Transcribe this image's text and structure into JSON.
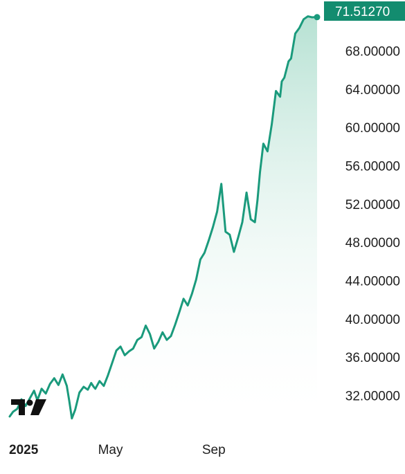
{
  "chart_data": {
    "type": "area",
    "x_labels": [
      "2025",
      "May",
      "Sep"
    ],
    "ylim": [
      29,
      72.8
    ],
    "y_ticks": [
      "32.00000",
      "36.00000",
      "40.00000",
      "44.00000",
      "48.00000",
      "52.00000",
      "56.00000",
      "60.00000",
      "64.00000",
      "68.00000"
    ],
    "y_tick_values": [
      32,
      36,
      40,
      44,
      48,
      52,
      56,
      60,
      64,
      68
    ],
    "last_value": 71.5127,
    "last_value_label": "71.51270",
    "x": [
      "2025-01-01",
      "2025-01-05",
      "2025-01-10",
      "2025-01-15",
      "2025-01-20",
      "2025-01-25",
      "2025-01-30",
      "2025-02-03",
      "2025-02-08",
      "2025-02-13",
      "2025-02-18",
      "2025-02-23",
      "2025-02-28",
      "2025-03-05",
      "2025-03-10",
      "2025-03-13",
      "2025-03-16",
      "2025-03-20",
      "2025-03-25",
      "2025-03-30",
      "2025-04-04",
      "2025-04-08",
      "2025-04-11",
      "2025-04-13",
      "2025-04-18",
      "2025-04-23",
      "2025-04-28",
      "2025-05-03",
      "2025-05-08",
      "2025-05-13",
      "2025-05-18",
      "2025-05-23",
      "2025-05-28",
      "2025-06-02",
      "2025-06-07",
      "2025-06-12",
      "2025-06-17",
      "2025-06-22",
      "2025-06-27",
      "2025-07-02",
      "2025-07-07",
      "2025-07-12",
      "2025-07-17",
      "2025-07-22",
      "2025-07-27",
      "2025-08-01",
      "2025-08-06",
      "2025-08-11",
      "2025-08-16",
      "2025-08-21",
      "2025-08-26",
      "2025-08-31",
      "2025-09-05",
      "2025-09-10",
      "2025-09-15",
      "2025-09-20",
      "2025-09-25",
      "2025-09-30",
      "2025-10-05",
      "2025-10-10",
      "2025-10-15",
      "2025-10-20",
      "2025-10-23",
      "2025-10-26",
      "2025-10-30",
      "2025-11-04",
      "2025-11-09",
      "2025-11-14",
      "2025-11-19",
      "2025-11-21",
      "2025-11-24",
      "2025-11-29",
      "2025-12-02",
      "2025-12-07",
      "2025-12-12",
      "2025-12-17",
      "2025-12-22",
      "2025-12-27",
      "2025-12-31",
      "2026-01-02"
    ],
    "values": [
      29.8,
      30.3,
      30.6,
      31.6,
      30.9,
      31.7,
      32.5,
      31.5,
      32.7,
      32.2,
      33.2,
      33.8,
      33.1,
      34.2,
      33.0,
      31.4,
      29.6,
      30.5,
      32.3,
      32.9,
      32.6,
      33.3,
      32.9,
      32.7,
      33.5,
      33.0,
      34.1,
      35.4,
      36.7,
      37.1,
      36.2,
      36.6,
      36.9,
      37.8,
      38.1,
      39.3,
      38.4,
      36.9,
      37.6,
      38.6,
      37.8,
      38.2,
      39.4,
      40.7,
      42.1,
      41.4,
      42.6,
      44.1,
      46.2,
      46.9,
      48.2,
      49.6,
      51.2,
      54.1,
      49.1,
      48.8,
      47.0,
      48.5,
      50.1,
      53.2,
      50.4,
      50.1,
      52.4,
      55.3,
      58.3,
      57.5,
      60.3,
      63.8,
      63.2,
      64.8,
      65.2,
      66.9,
      67.2,
      69.8,
      70.4,
      71.3,
      71.6,
      71.5,
      71.5127,
      71.5127
    ],
    "colors": {
      "line": "#1a9a7c",
      "label_bg": "#138c6f",
      "fill_top": "#b9e3d5",
      "text": "#1e1e1e"
    }
  }
}
